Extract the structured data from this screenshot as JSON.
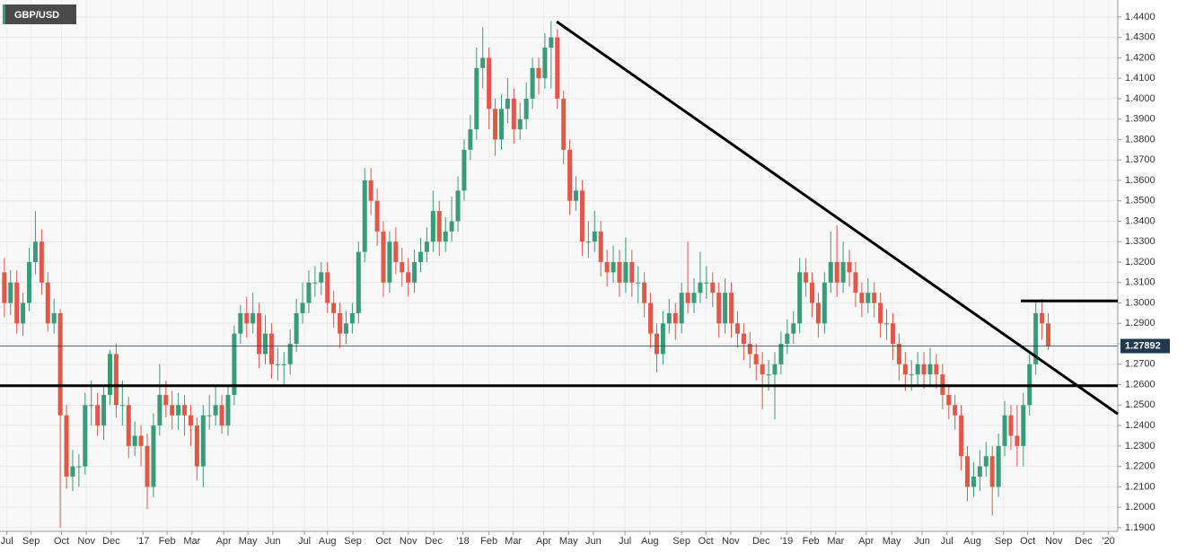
{
  "chart_data": {
    "type": "candlestick",
    "title": "GBP/USD",
    "up_color": "#3a9b78",
    "down_color": "#e0584a",
    "line_color": "#000000",
    "price_line_color": "#22384e",
    "grid": true,
    "ylim": [
      1.1882,
      1.4483
    ],
    "yticks": [
      {
        "value": 1.19,
        "label": "1.1900"
      },
      {
        "value": 1.2,
        "label": "1.2000"
      },
      {
        "value": 1.21,
        "label": "1.2100"
      },
      {
        "value": 1.22,
        "label": "1.2200"
      },
      {
        "value": 1.23,
        "label": "1.2300"
      },
      {
        "value": 1.24,
        "label": "1.2400"
      },
      {
        "value": 1.25,
        "label": "1.2500"
      },
      {
        "value": 1.26,
        "label": "1.2600"
      },
      {
        "value": 1.27,
        "label": "1.2700"
      },
      {
        "value": 1.28,
        "label": "1.2800"
      },
      {
        "value": 1.29,
        "label": "1.2900"
      },
      {
        "value": 1.3,
        "label": "1.3000"
      },
      {
        "value": 1.31,
        "label": "1.3100"
      },
      {
        "value": 1.32,
        "label": "1.3200"
      },
      {
        "value": 1.33,
        "label": "1.3300"
      },
      {
        "value": 1.34,
        "label": "1.3400"
      },
      {
        "value": 1.35,
        "label": "1.3500"
      },
      {
        "value": 1.36,
        "label": "1.3600"
      },
      {
        "value": 1.37,
        "label": "1.3700"
      },
      {
        "value": 1.38,
        "label": "1.3800"
      },
      {
        "value": 1.39,
        "label": "1.3900"
      },
      {
        "value": 1.4,
        "label": "1.4000"
      },
      {
        "value": 1.41,
        "label": "1.4100"
      },
      {
        "value": 1.42,
        "label": "1.4200"
      },
      {
        "value": 1.43,
        "label": "1.4300"
      },
      {
        "value": 1.44,
        "label": "1.4400"
      }
    ],
    "xlim": [
      -0.7,
      179.2
    ],
    "xticks": [
      {
        "value": 0.4,
        "label": "Jul"
      },
      {
        "value": 4.3,
        "label": "Sep"
      },
      {
        "value": 9.2,
        "label": "Oct"
      },
      {
        "value": 13.2,
        "label": "Nov"
      },
      {
        "value": 17.2,
        "label": "Dec"
      },
      {
        "value": 22.3,
        "label": "'17"
      },
      {
        "value": 26.2,
        "label": "Feb"
      },
      {
        "value": 30.2,
        "label": "Mar"
      },
      {
        "value": 35.3,
        "label": "Apr"
      },
      {
        "value": 39.2,
        "label": "May"
      },
      {
        "value": 43.2,
        "label": "Jun"
      },
      {
        "value": 48.3,
        "label": "Jul"
      },
      {
        "value": 52.0,
        "label": "Aug"
      },
      {
        "value": 56.1,
        "label": "Sep"
      },
      {
        "value": 61.0,
        "label": "Oct"
      },
      {
        "value": 65.0,
        "label": "Nov"
      },
      {
        "value": 69.1,
        "label": "Dec"
      },
      {
        "value": 73.8,
        "label": "'18"
      },
      {
        "value": 78.0,
        "label": "Feb"
      },
      {
        "value": 81.9,
        "label": "Mar"
      },
      {
        "value": 86.8,
        "label": "Apr"
      },
      {
        "value": 90.8,
        "label": "May"
      },
      {
        "value": 94.8,
        "label": "Jun"
      },
      {
        "value": 99.9,
        "label": "Jul"
      },
      {
        "value": 103.9,
        "label": "Aug"
      },
      {
        "value": 109.0,
        "label": "Sep"
      },
      {
        "value": 112.9,
        "label": "Oct"
      },
      {
        "value": 116.9,
        "label": "Nov"
      },
      {
        "value": 121.8,
        "label": "Dec"
      },
      {
        "value": 125.9,
        "label": "'19"
      },
      {
        "value": 129.8,
        "label": "Feb"
      },
      {
        "value": 133.8,
        "label": "Mar"
      },
      {
        "value": 138.7,
        "label": "Apr"
      },
      {
        "value": 142.8,
        "label": "May"
      },
      {
        "value": 147.7,
        "label": "Jun"
      },
      {
        "value": 151.7,
        "label": "Jul"
      },
      {
        "value": 155.8,
        "label": "Aug"
      },
      {
        "value": 160.8,
        "label": "Sep"
      },
      {
        "value": 164.7,
        "label": "Oct"
      },
      {
        "value": 168.9,
        "label": "Nov"
      },
      {
        "value": 173.7,
        "label": "Dec"
      },
      {
        "value": 177.7,
        "label": "'20"
      }
    ],
    "trendlines": [
      {
        "x": [
          88.9,
          179.2
        ],
        "y": [
          1.4377,
          1.2457
        ]
      },
      {
        "x": [
          -0.7,
          179.2
        ],
        "y": [
          1.2595,
          1.2595
        ]
      },
      {
        "x": [
          163.6,
          179.2
        ],
        "y": [
          1.301,
          1.301
        ]
      }
    ],
    "ohlc": [
      [
        1.315,
        1.322,
        1.293,
        1.3
      ],
      [
        1.3,
        1.316,
        1.294,
        1.31
      ],
      [
        1.31,
        1.316,
        1.285,
        1.29
      ],
      [
        1.29,
        1.305,
        1.284,
        1.3
      ],
      [
        1.3,
        1.327,
        1.296,
        1.32
      ],
      [
        1.32,
        1.345,
        1.314,
        1.33
      ],
      [
        1.33,
        1.336,
        1.304,
        1.31
      ],
      [
        1.31,
        1.315,
        1.286,
        1.29
      ],
      [
        1.29,
        1.302,
        1.285,
        1.295
      ],
      [
        1.295,
        1.297,
        1.19,
        1.245
      ],
      [
        1.245,
        1.25,
        1.209,
        1.215
      ],
      [
        1.215,
        1.228,
        1.208,
        1.22
      ],
      [
        1.22,
        1.226,
        1.21,
        1.22
      ],
      [
        1.22,
        1.256,
        1.216,
        1.25
      ],
      [
        1.25,
        1.262,
        1.24,
        1.25
      ],
      [
        1.25,
        1.256,
        1.235,
        1.24
      ],
      [
        1.24,
        1.26,
        1.233,
        1.255
      ],
      [
        1.255,
        1.277,
        1.25,
        1.275
      ],
      [
        1.275,
        1.28,
        1.244,
        1.25
      ],
      [
        1.25,
        1.262,
        1.24,
        1.25
      ],
      [
        1.25,
        1.254,
        1.224,
        1.23
      ],
      [
        1.23,
        1.242,
        1.225,
        1.235
      ],
      [
        1.235,
        1.24,
        1.22,
        1.23
      ],
      [
        1.23,
        1.236,
        1.199,
        1.21
      ],
      [
        1.21,
        1.246,
        1.205,
        1.24
      ],
      [
        1.24,
        1.27,
        1.235,
        1.255
      ],
      [
        1.255,
        1.262,
        1.244,
        1.25
      ],
      [
        1.25,
        1.257,
        1.238,
        1.245
      ],
      [
        1.245,
        1.256,
        1.238,
        1.25
      ],
      [
        1.25,
        1.255,
        1.235,
        1.245
      ],
      [
        1.245,
        1.25,
        1.23,
        1.24
      ],
      [
        1.24,
        1.244,
        1.213,
        1.22
      ],
      [
        1.22,
        1.25,
        1.21,
        1.245
      ],
      [
        1.245,
        1.255,
        1.238,
        1.245
      ],
      [
        1.245,
        1.26,
        1.24,
        1.25
      ],
      [
        1.25,
        1.255,
        1.236,
        1.24
      ],
      [
        1.24,
        1.26,
        1.235,
        1.255
      ],
      [
        1.255,
        1.289,
        1.25,
        1.285
      ],
      [
        1.285,
        1.299,
        1.28,
        1.295
      ],
      [
        1.295,
        1.303,
        1.283,
        1.29
      ],
      [
        1.29,
        1.305,
        1.285,
        1.295
      ],
      [
        1.295,
        1.3,
        1.268,
        1.275
      ],
      [
        1.275,
        1.294,
        1.27,
        1.285
      ],
      [
        1.285,
        1.29,
        1.263,
        1.27
      ],
      [
        1.27,
        1.278,
        1.262,
        1.27
      ],
      [
        1.27,
        1.276,
        1.259,
        1.27
      ],
      [
        1.27,
        1.287,
        1.265,
        1.28
      ],
      [
        1.28,
        1.302,
        1.276,
        1.295
      ],
      [
        1.295,
        1.31,
        1.29,
        1.3
      ],
      [
        1.3,
        1.316,
        1.295,
        1.31
      ],
      [
        1.31,
        1.318,
        1.303,
        1.31
      ],
      [
        1.31,
        1.32,
        1.304,
        1.315
      ],
      [
        1.315,
        1.32,
        1.295,
        1.3
      ],
      [
        1.3,
        1.306,
        1.288,
        1.295
      ],
      [
        1.295,
        1.3,
        1.278,
        1.285
      ],
      [
        1.285,
        1.296,
        1.28,
        1.29
      ],
      [
        1.29,
        1.3,
        1.285,
        1.295
      ],
      [
        1.295,
        1.33,
        1.29,
        1.325
      ],
      [
        1.325,
        1.366,
        1.32,
        1.36
      ],
      [
        1.36,
        1.366,
        1.343,
        1.35
      ],
      [
        1.35,
        1.356,
        1.328,
        1.335
      ],
      [
        1.335,
        1.34,
        1.303,
        1.31
      ],
      [
        1.31,
        1.335,
        1.305,
        1.33
      ],
      [
        1.33,
        1.337,
        1.314,
        1.32
      ],
      [
        1.32,
        1.327,
        1.308,
        1.315
      ],
      [
        1.315,
        1.322,
        1.303,
        1.31
      ],
      [
        1.31,
        1.326,
        1.305,
        1.32
      ],
      [
        1.32,
        1.332,
        1.315,
        1.325
      ],
      [
        1.325,
        1.337,
        1.32,
        1.33
      ],
      [
        1.33,
        1.355,
        1.325,
        1.345
      ],
      [
        1.345,
        1.35,
        1.323,
        1.33
      ],
      [
        1.33,
        1.342,
        1.325,
        1.335
      ],
      [
        1.335,
        1.352,
        1.33,
        1.34
      ],
      [
        1.34,
        1.362,
        1.335,
        1.355
      ],
      [
        1.355,
        1.38,
        1.35,
        1.375
      ],
      [
        1.375,
        1.392,
        1.37,
        1.385
      ],
      [
        1.385,
        1.425,
        1.38,
        1.415
      ],
      [
        1.415,
        1.435,
        1.405,
        1.42
      ],
      [
        1.42,
        1.425,
        1.385,
        1.395
      ],
      [
        1.395,
        1.4,
        1.372,
        1.38
      ],
      [
        1.38,
        1.402,
        1.375,
        1.395
      ],
      [
        1.395,
        1.41,
        1.388,
        1.4
      ],
      [
        1.4,
        1.405,
        1.378,
        1.385
      ],
      [
        1.385,
        1.398,
        1.38,
        1.39
      ],
      [
        1.39,
        1.408,
        1.385,
        1.4
      ],
      [
        1.4,
        1.42,
        1.395,
        1.415
      ],
      [
        1.415,
        1.42,
        1.402,
        1.41
      ],
      [
        1.41,
        1.432,
        1.405,
        1.425
      ],
      [
        1.425,
        1.438,
        1.405,
        1.43
      ],
      [
        1.43,
        1.434,
        1.395,
        1.4
      ],
      [
        1.4,
        1.404,
        1.368,
        1.375
      ],
      [
        1.375,
        1.38,
        1.343,
        1.35
      ],
      [
        1.35,
        1.362,
        1.345,
        1.355
      ],
      [
        1.355,
        1.36,
        1.323,
        1.33
      ],
      [
        1.33,
        1.34,
        1.322,
        1.33
      ],
      [
        1.33,
        1.345,
        1.325,
        1.335
      ],
      [
        1.335,
        1.34,
        1.313,
        1.32
      ],
      [
        1.32,
        1.326,
        1.308,
        1.315
      ],
      [
        1.315,
        1.328,
        1.31,
        1.32
      ],
      [
        1.32,
        1.326,
        1.303,
        1.31
      ],
      [
        1.31,
        1.332,
        1.305,
        1.32
      ],
      [
        1.32,
        1.326,
        1.303,
        1.31
      ],
      [
        1.31,
        1.318,
        1.3,
        1.31
      ],
      [
        1.31,
        1.315,
        1.293,
        1.3
      ],
      [
        1.3,
        1.305,
        1.278,
        1.285
      ],
      [
        1.285,
        1.29,
        1.266,
        1.275
      ],
      [
        1.275,
        1.296,
        1.27,
        1.29
      ],
      [
        1.29,
        1.302,
        1.285,
        1.295
      ],
      [
        1.295,
        1.3,
        1.282,
        1.29
      ],
      [
        1.29,
        1.31,
        1.285,
        1.305
      ],
      [
        1.305,
        1.33,
        1.295,
        1.3
      ],
      [
        1.3,
        1.312,
        1.295,
        1.305
      ],
      [
        1.305,
        1.325,
        1.3,
        1.31
      ],
      [
        1.31,
        1.318,
        1.302,
        1.31
      ],
      [
        1.31,
        1.315,
        1.298,
        1.305
      ],
      [
        1.305,
        1.31,
        1.283,
        1.29
      ],
      [
        1.29,
        1.312,
        1.285,
        1.305
      ],
      [
        1.305,
        1.31,
        1.283,
        1.29
      ],
      [
        1.29,
        1.296,
        1.278,
        1.285
      ],
      [
        1.285,
        1.29,
        1.272,
        1.28
      ],
      [
        1.28,
        1.286,
        1.268,
        1.275
      ],
      [
        1.275,
        1.28,
        1.262,
        1.27
      ],
      [
        1.27,
        1.276,
        1.248,
        1.265
      ],
      [
        1.265,
        1.272,
        1.257,
        1.265
      ],
      [
        1.265,
        1.276,
        1.243,
        1.27
      ],
      [
        1.27,
        1.286,
        1.265,
        1.28
      ],
      [
        1.28,
        1.292,
        1.275,
        1.285
      ],
      [
        1.285,
        1.296,
        1.28,
        1.29
      ],
      [
        1.29,
        1.322,
        1.285,
        1.315
      ],
      [
        1.315,
        1.322,
        1.303,
        1.31
      ],
      [
        1.31,
        1.315,
        1.293,
        1.3
      ],
      [
        1.3,
        1.305,
        1.283,
        1.29
      ],
      [
        1.29,
        1.315,
        1.285,
        1.31
      ],
      [
        1.31,
        1.335,
        1.305,
        1.32
      ],
      [
        1.32,
        1.338,
        1.303,
        1.31
      ],
      [
        1.31,
        1.33,
        1.305,
        1.32
      ],
      [
        1.32,
        1.326,
        1.308,
        1.315
      ],
      [
        1.315,
        1.32,
        1.298,
        1.305
      ],
      [
        1.305,
        1.31,
        1.293,
        1.3
      ],
      [
        1.3,
        1.312,
        1.295,
        1.305
      ],
      [
        1.305,
        1.31,
        1.293,
        1.3
      ],
      [
        1.3,
        1.305,
        1.283,
        1.29
      ],
      [
        1.29,
        1.297,
        1.282,
        1.29
      ],
      [
        1.29,
        1.295,
        1.272,
        1.28
      ],
      [
        1.28,
        1.285,
        1.262,
        1.27
      ],
      [
        1.27,
        1.276,
        1.257,
        1.265
      ],
      [
        1.265,
        1.272,
        1.257,
        1.265
      ],
      [
        1.265,
        1.276,
        1.26,
        1.27
      ],
      [
        1.27,
        1.276,
        1.258,
        1.265
      ],
      [
        1.265,
        1.278,
        1.26,
        1.27
      ],
      [
        1.27,
        1.275,
        1.258,
        1.265
      ],
      [
        1.265,
        1.27,
        1.248,
        1.255
      ],
      [
        1.255,
        1.26,
        1.243,
        1.25
      ],
      [
        1.25,
        1.255,
        1.238,
        1.245
      ],
      [
        1.245,
        1.25,
        1.218,
        1.225
      ],
      [
        1.225,
        1.23,
        1.203,
        1.21
      ],
      [
        1.21,
        1.222,
        1.205,
        1.215
      ],
      [
        1.215,
        1.228,
        1.208,
        1.22
      ],
      [
        1.22,
        1.232,
        1.215,
        1.225
      ],
      [
        1.225,
        1.23,
        1.196,
        1.21
      ],
      [
        1.21,
        1.236,
        1.205,
        1.23
      ],
      [
        1.23,
        1.252,
        1.225,
        1.245
      ],
      [
        1.245,
        1.25,
        1.228,
        1.235
      ],
      [
        1.235,
        1.25,
        1.22,
        1.23
      ],
      [
        1.23,
        1.256,
        1.22,
        1.25
      ],
      [
        1.25,
        1.276,
        1.245,
        1.27
      ],
      [
        1.27,
        1.301,
        1.265,
        1.295
      ],
      [
        1.295,
        1.302,
        1.282,
        1.29
      ],
      [
        1.29,
        1.295,
        1.277,
        1.27892
      ]
    ]
  }
}
